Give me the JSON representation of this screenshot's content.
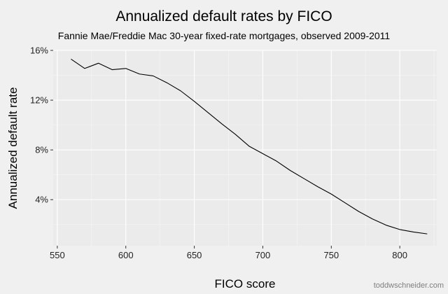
{
  "chart_data": {
    "type": "line",
    "title": "Annualized default rates by FICO",
    "subtitle": "Fannie Mae/Freddie Mac 30-year fixed-rate mortgages, observed 2009-2011",
    "xlabel": "FICO score",
    "ylabel": "Annualized default rate",
    "xlim": [
      547,
      827
    ],
    "ylim": [
      0.3,
      16.0
    ],
    "x_ticks": [
      550,
      600,
      650,
      700,
      750,
      800
    ],
    "x_tick_labels": [
      "550",
      "600",
      "650",
      "700",
      "750",
      "800"
    ],
    "y_ticks": [
      4,
      8,
      12,
      16
    ],
    "y_tick_labels": [
      "4%",
      "8%",
      "12%",
      "16%"
    ],
    "grid": true,
    "series": [
      {
        "x": [
          560,
          570,
          580,
          590,
          600,
          610,
          620,
          630,
          640,
          650,
          660,
          670,
          680,
          690,
          700,
          710,
          720,
          730,
          740,
          750,
          760,
          770,
          780,
          790,
          800,
          810,
          820
        ],
        "y": [
          15.3,
          14.55,
          14.97,
          14.45,
          14.55,
          14.1,
          13.95,
          13.4,
          12.75,
          11.9,
          11.0,
          10.1,
          9.25,
          8.3,
          7.7,
          7.1,
          6.35,
          5.7,
          5.05,
          4.45,
          3.75,
          3.05,
          2.45,
          1.95,
          1.6,
          1.4,
          1.25
        ],
        "color": "#000000"
      }
    ],
    "background": "#f0f0f0",
    "panel_background": "#ebebeb"
  },
  "credit": "toddwschneider.com"
}
